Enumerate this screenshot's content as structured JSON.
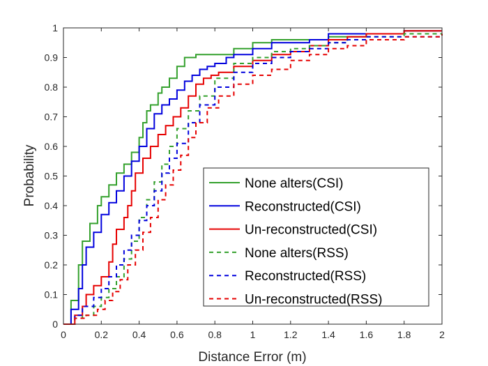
{
  "chart_data": {
    "type": "line",
    "xlabel": "Distance Error (m)",
    "ylabel": "Probability",
    "xlim": [
      0,
      2
    ],
    "ylim": [
      0,
      1
    ],
    "x_ticks": [
      "0",
      "0.2",
      "0.4",
      "0.6",
      "0.8",
      "1",
      "1.2",
      "1.4",
      "1.6",
      "1.8",
      "2"
    ],
    "y_ticks": [
      "0",
      "0.1",
      "0.2",
      "0.3",
      "0.4",
      "0.5",
      "0.6",
      "0.7",
      "0.8",
      "0.9",
      "1"
    ],
    "grid": false,
    "legend_position": "lower-right",
    "series": [
      {
        "name": "None alters(CSI)",
        "color": "#33a02c",
        "style": "solid",
        "points": [
          [
            0,
            0
          ],
          [
            0.04,
            0.08
          ],
          [
            0.08,
            0.2
          ],
          [
            0.1,
            0.28
          ],
          [
            0.14,
            0.34
          ],
          [
            0.18,
            0.4
          ],
          [
            0.2,
            0.43
          ],
          [
            0.24,
            0.47
          ],
          [
            0.28,
            0.51
          ],
          [
            0.32,
            0.54
          ],
          [
            0.36,
            0.58
          ],
          [
            0.4,
            0.63
          ],
          [
            0.42,
            0.68
          ],
          [
            0.44,
            0.72
          ],
          [
            0.46,
            0.74
          ],
          [
            0.5,
            0.78
          ],
          [
            0.52,
            0.8
          ],
          [
            0.56,
            0.83
          ],
          [
            0.6,
            0.87
          ],
          [
            0.64,
            0.9
          ],
          [
            0.7,
            0.91
          ],
          [
            0.8,
            0.91
          ],
          [
            0.9,
            0.93
          ],
          [
            1.0,
            0.95
          ],
          [
            1.1,
            0.96
          ],
          [
            1.2,
            0.96
          ],
          [
            1.4,
            0.97
          ],
          [
            1.6,
            0.98
          ],
          [
            1.8,
            0.99
          ],
          [
            2.0,
            0.99
          ]
        ]
      },
      {
        "name": "Reconstructed(CSI)",
        "color": "#0000dd",
        "style": "solid",
        "points": [
          [
            0,
            0
          ],
          [
            0.04,
            0.05
          ],
          [
            0.08,
            0.12
          ],
          [
            0.1,
            0.2
          ],
          [
            0.12,
            0.26
          ],
          [
            0.16,
            0.31
          ],
          [
            0.2,
            0.37
          ],
          [
            0.24,
            0.41
          ],
          [
            0.28,
            0.45
          ],
          [
            0.32,
            0.5
          ],
          [
            0.36,
            0.55
          ],
          [
            0.4,
            0.6
          ],
          [
            0.44,
            0.66
          ],
          [
            0.48,
            0.71
          ],
          [
            0.52,
            0.74
          ],
          [
            0.56,
            0.76
          ],
          [
            0.6,
            0.79
          ],
          [
            0.64,
            0.82
          ],
          [
            0.68,
            0.84
          ],
          [
            0.72,
            0.86
          ],
          [
            0.76,
            0.87
          ],
          [
            0.8,
            0.88
          ],
          [
            0.86,
            0.9
          ],
          [
            0.9,
            0.91
          ],
          [
            1.0,
            0.93
          ],
          [
            1.1,
            0.95
          ],
          [
            1.2,
            0.95
          ],
          [
            1.3,
            0.96
          ],
          [
            1.4,
            0.98
          ],
          [
            1.5,
            0.98
          ],
          [
            1.6,
            0.98
          ],
          [
            1.8,
            0.99
          ],
          [
            2.0,
            0.99
          ]
        ]
      },
      {
        "name": "Un-reconstructed(CSI)",
        "color": "#e60000",
        "style": "solid",
        "points": [
          [
            0,
            0
          ],
          [
            0.06,
            0.03
          ],
          [
            0.1,
            0.06
          ],
          [
            0.12,
            0.1
          ],
          [
            0.16,
            0.13
          ],
          [
            0.2,
            0.16
          ],
          [
            0.24,
            0.21
          ],
          [
            0.26,
            0.27
          ],
          [
            0.28,
            0.32
          ],
          [
            0.32,
            0.36
          ],
          [
            0.34,
            0.4
          ],
          [
            0.36,
            0.45
          ],
          [
            0.38,
            0.51
          ],
          [
            0.42,
            0.56
          ],
          [
            0.46,
            0.6
          ],
          [
            0.5,
            0.64
          ],
          [
            0.54,
            0.67
          ],
          [
            0.58,
            0.7
          ],
          [
            0.62,
            0.73
          ],
          [
            0.66,
            0.77
          ],
          [
            0.7,
            0.81
          ],
          [
            0.74,
            0.83
          ],
          [
            0.78,
            0.84
          ],
          [
            0.82,
            0.85
          ],
          [
            0.9,
            0.87
          ],
          [
            1.0,
            0.89
          ],
          [
            1.1,
            0.91
          ],
          [
            1.2,
            0.92
          ],
          [
            1.3,
            0.94
          ],
          [
            1.4,
            0.96
          ],
          [
            1.5,
            0.97
          ],
          [
            1.6,
            0.98
          ],
          [
            1.8,
            0.99
          ],
          [
            2.0,
            0.99
          ]
        ]
      },
      {
        "name": "None alters(RSS)",
        "color": "#33a02c",
        "style": "dashed",
        "points": [
          [
            0,
            0
          ],
          [
            0.06,
            0.02
          ],
          [
            0.1,
            0.03
          ],
          [
            0.16,
            0.06
          ],
          [
            0.2,
            0.09
          ],
          [
            0.24,
            0.12
          ],
          [
            0.28,
            0.16
          ],
          [
            0.32,
            0.22
          ],
          [
            0.36,
            0.28
          ],
          [
            0.4,
            0.36
          ],
          [
            0.44,
            0.42
          ],
          [
            0.48,
            0.48
          ],
          [
            0.52,
            0.54
          ],
          [
            0.56,
            0.6
          ],
          [
            0.6,
            0.66
          ],
          [
            0.66,
            0.72
          ],
          [
            0.72,
            0.77
          ],
          [
            0.8,
            0.83
          ],
          [
            0.9,
            0.88
          ],
          [
            1.0,
            0.9
          ],
          [
            1.1,
            0.92
          ],
          [
            1.2,
            0.93
          ],
          [
            1.3,
            0.94
          ],
          [
            1.4,
            0.95
          ],
          [
            1.5,
            0.96
          ],
          [
            1.6,
            0.97
          ],
          [
            1.8,
            0.98
          ],
          [
            2.0,
            0.98
          ]
        ]
      },
      {
        "name": "Reconstructed(RSS)",
        "color": "#0000dd",
        "style": "dashed",
        "points": [
          [
            0,
            0
          ],
          [
            0.06,
            0.03
          ],
          [
            0.1,
            0.06
          ],
          [
            0.16,
            0.09
          ],
          [
            0.2,
            0.12
          ],
          [
            0.24,
            0.16
          ],
          [
            0.28,
            0.2
          ],
          [
            0.32,
            0.25
          ],
          [
            0.36,
            0.3
          ],
          [
            0.4,
            0.35
          ],
          [
            0.44,
            0.4
          ],
          [
            0.48,
            0.45
          ],
          [
            0.52,
            0.51
          ],
          [
            0.56,
            0.56
          ],
          [
            0.6,
            0.61
          ],
          [
            0.66,
            0.68
          ],
          [
            0.72,
            0.74
          ],
          [
            0.8,
            0.8
          ],
          [
            0.9,
            0.85
          ],
          [
            1.0,
            0.88
          ],
          [
            1.1,
            0.9
          ],
          [
            1.2,
            0.92
          ],
          [
            1.3,
            0.93
          ],
          [
            1.4,
            0.95
          ],
          [
            1.5,
            0.96
          ],
          [
            1.6,
            0.97
          ],
          [
            1.8,
            0.97
          ],
          [
            2.0,
            0.98
          ]
        ]
      },
      {
        "name": "Un-reconstructed(RSS)",
        "color": "#e60000",
        "style": "dashed",
        "points": [
          [
            0,
            0
          ],
          [
            0.06,
            0.02
          ],
          [
            0.12,
            0.03
          ],
          [
            0.18,
            0.05
          ],
          [
            0.22,
            0.08
          ],
          [
            0.26,
            0.11
          ],
          [
            0.3,
            0.15
          ],
          [
            0.34,
            0.2
          ],
          [
            0.38,
            0.25
          ],
          [
            0.42,
            0.31
          ],
          [
            0.46,
            0.36
          ],
          [
            0.5,
            0.42
          ],
          [
            0.54,
            0.47
          ],
          [
            0.58,
            0.52
          ],
          [
            0.62,
            0.57
          ],
          [
            0.66,
            0.63
          ],
          [
            0.7,
            0.68
          ],
          [
            0.76,
            0.73
          ],
          [
            0.82,
            0.77
          ],
          [
            0.9,
            0.81
          ],
          [
            1.0,
            0.84
          ],
          [
            1.1,
            0.86
          ],
          [
            1.2,
            0.89
          ],
          [
            1.3,
            0.91
          ],
          [
            1.4,
            0.93
          ],
          [
            1.5,
            0.94
          ],
          [
            1.6,
            0.96
          ],
          [
            1.8,
            0.97
          ],
          [
            2.0,
            0.98
          ]
        ]
      }
    ]
  }
}
